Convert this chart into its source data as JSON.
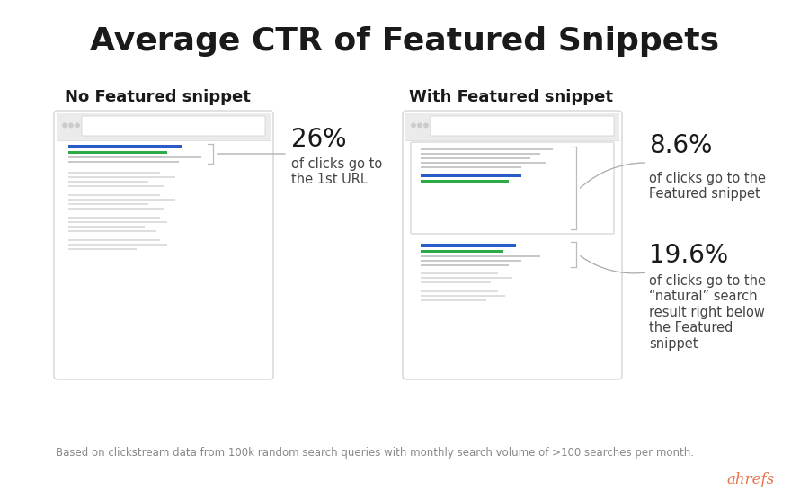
{
  "title": "Average CTR of Featured Snippets",
  "title_fontsize": 26,
  "title_fontweight": "bold",
  "bg_color": "#ffffff",
  "left_section_label": "No Featured snippet",
  "right_section_label": "With Featured snippet",
  "section_label_fontsize": 13,
  "pct_26": "26%",
  "pct_26_desc": "of clicks go to\nthe 1st URL",
  "pct_86": "8.6%",
  "pct_86_desc": "of clicks go to the\nFeatured snippet",
  "pct_196": "19.6%",
  "pct_196_desc": "of clicks go to the\n“natural” search\nresult right below\nthe Featured\nsnippet",
  "pct_fontsize": 20,
  "desc_fontsize": 10.5,
  "footnote": "Based on clickstream data from 100k random search queries with monthly search volume of >100 searches per month.",
  "footnote_fontsize": 8.5,
  "ahrefs_text": "ahrefs",
  "ahrefs_color": "#e8734a",
  "browser_bar": "#ebebeb",
  "browser_border": "#d5d5d5",
  "dot_color": "#cccccc",
  "line_gray_light": "#dedede",
  "line_gray_med": "#c8c8c8",
  "line_blue": "#2b5bc8",
  "line_green": "#2eaa44",
  "text_dark": "#1a1a1a",
  "text_medium": "#444444",
  "text_light": "#888888",
  "bracket_color": "#bbbbbb",
  "arrow_color": "#aaaaaa"
}
